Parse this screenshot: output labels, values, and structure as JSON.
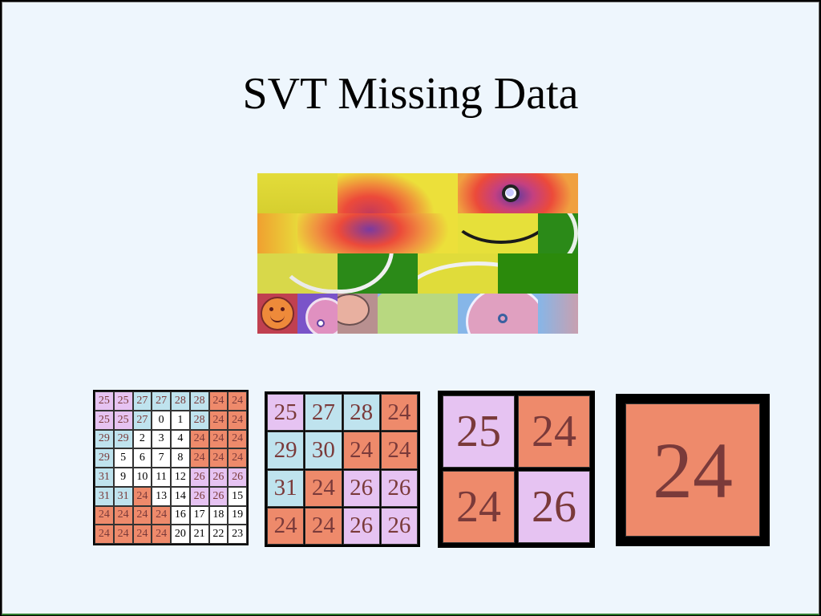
{
  "slide": {
    "title": "SVT Missing Data"
  },
  "mosaic": {
    "description_colors": {
      "yellow": "#e7e03a",
      "red": "#ec4a3a",
      "purple": "#7a54c9",
      "green": "#2b8a18",
      "blue": "#86b6e8"
    }
  },
  "grids": {
    "colors": {
      "pink": "#e6c3f2",
      "blue": "#bfe3ee",
      "orange": "#ee8a6b",
      "white": "#ffffff"
    },
    "grid8": {
      "rows": [
        [
          [
            "25",
            "pink"
          ],
          [
            "25",
            "pink"
          ],
          [
            "27",
            "blue"
          ],
          [
            "27",
            "blue"
          ],
          [
            "28",
            "blue"
          ],
          [
            "28",
            "blue"
          ],
          [
            "24",
            "orange"
          ],
          [
            "24",
            "orange"
          ]
        ],
        [
          [
            "25",
            "pink"
          ],
          [
            "25",
            "pink"
          ],
          [
            "27",
            "blue"
          ],
          [
            "0",
            "white"
          ],
          [
            "1",
            "white"
          ],
          [
            "28",
            "blue"
          ],
          [
            "24",
            "orange"
          ],
          [
            "24",
            "orange"
          ]
        ],
        [
          [
            "29",
            "blue"
          ],
          [
            "29",
            "blue"
          ],
          [
            "2",
            "white"
          ],
          [
            "3",
            "white"
          ],
          [
            "4",
            "white"
          ],
          [
            "24",
            "orange"
          ],
          [
            "24",
            "orange"
          ],
          [
            "24",
            "orange"
          ]
        ],
        [
          [
            "29",
            "blue"
          ],
          [
            "5",
            "white"
          ],
          [
            "6",
            "white"
          ],
          [
            "7",
            "white"
          ],
          [
            "8",
            "white"
          ],
          [
            "24",
            "orange"
          ],
          [
            "24",
            "orange"
          ],
          [
            "24",
            "orange"
          ]
        ],
        [
          [
            "31",
            "blue"
          ],
          [
            "9",
            "white"
          ],
          [
            "10",
            "white"
          ],
          [
            "11",
            "white"
          ],
          [
            "12",
            "white"
          ],
          [
            "26",
            "pink"
          ],
          [
            "26",
            "pink"
          ],
          [
            "26",
            "pink"
          ]
        ],
        [
          [
            "31",
            "blue"
          ],
          [
            "31",
            "blue"
          ],
          [
            "24",
            "orange"
          ],
          [
            "13",
            "white"
          ],
          [
            "14",
            "white"
          ],
          [
            "26",
            "pink"
          ],
          [
            "26",
            "pink"
          ],
          [
            "15",
            "white"
          ]
        ],
        [
          [
            "24",
            "orange"
          ],
          [
            "24",
            "orange"
          ],
          [
            "24",
            "orange"
          ],
          [
            "24",
            "orange"
          ],
          [
            "16",
            "white"
          ],
          [
            "17",
            "white"
          ],
          [
            "18",
            "white"
          ],
          [
            "19",
            "white"
          ]
        ],
        [
          [
            "24",
            "orange"
          ],
          [
            "24",
            "orange"
          ],
          [
            "24",
            "orange"
          ],
          [
            "24",
            "orange"
          ],
          [
            "20",
            "white"
          ],
          [
            "21",
            "white"
          ],
          [
            "22",
            "white"
          ],
          [
            "23",
            "white"
          ]
        ]
      ]
    },
    "grid4": {
      "rows": [
        [
          [
            "25",
            "pink"
          ],
          [
            "27",
            "blue"
          ],
          [
            "28",
            "blue"
          ],
          [
            "24",
            "orange"
          ]
        ],
        [
          [
            "29",
            "blue"
          ],
          [
            "30",
            "blue"
          ],
          [
            "24",
            "orange"
          ],
          [
            "24",
            "orange"
          ]
        ],
        [
          [
            "31",
            "blue"
          ],
          [
            "24",
            "orange"
          ],
          [
            "26",
            "pink"
          ],
          [
            "26",
            "pink"
          ]
        ],
        [
          [
            "24",
            "orange"
          ],
          [
            "24",
            "orange"
          ],
          [
            "26",
            "pink"
          ],
          [
            "26",
            "pink"
          ]
        ]
      ]
    },
    "grid2": {
      "rows": [
        [
          [
            "25",
            "pink"
          ],
          [
            "24",
            "orange"
          ]
        ],
        [
          [
            "24",
            "orange"
          ],
          [
            "26",
            "pink"
          ]
        ]
      ]
    },
    "grid1": {
      "rows": [
        [
          [
            "24",
            "orange"
          ]
        ]
      ]
    }
  }
}
